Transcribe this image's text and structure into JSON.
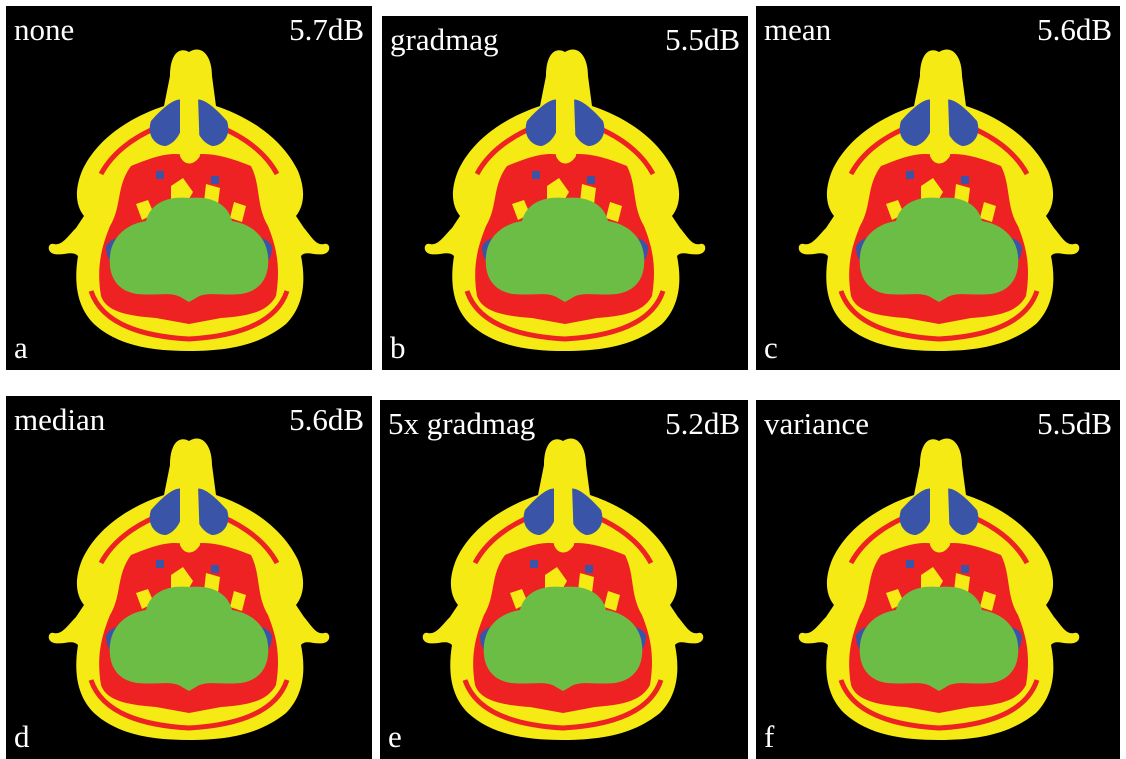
{
  "panels": [
    {
      "label": "none",
      "snr": "5.7dB",
      "letter": "a"
    },
    {
      "label": "gradmag",
      "snr": "5.5dB",
      "letter": "b"
    },
    {
      "label": "mean",
      "snr": "5.6dB",
      "letter": "c"
    },
    {
      "label": "median",
      "snr": "5.6dB",
      "letter": "d"
    },
    {
      "label": "5x gradmag",
      "snr": "5.2dB",
      "letter": "e"
    },
    {
      "label": "variance",
      "snr": "5.5dB",
      "letter": "f"
    }
  ]
}
